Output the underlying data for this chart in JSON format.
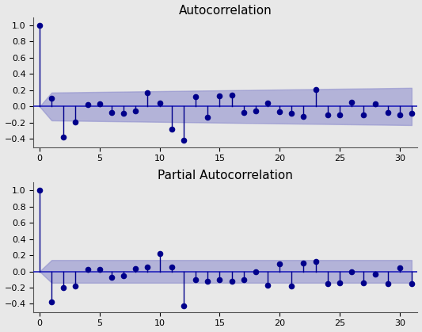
{
  "acf_values": [
    1.0,
    0.1,
    -0.38,
    -0.19,
    0.02,
    0.03,
    -0.07,
    -0.08,
    -0.05,
    0.17,
    0.04,
    -0.28,
    -0.42,
    0.12,
    -0.13,
    0.13,
    0.14,
    -0.07,
    -0.05,
    0.04,
    -0.06,
    -0.08,
    -0.12,
    0.21,
    -0.1,
    -0.1,
    0.05,
    -0.1,
    0.03,
    -0.07,
    -0.1,
    -0.08
  ],
  "pacf_values": [
    1.0,
    -0.38,
    -0.2,
    -0.18,
    0.02,
    0.02,
    -0.07,
    -0.05,
    0.03,
    0.05,
    0.22,
    0.05,
    -0.42,
    -0.1,
    -0.12,
    -0.1,
    -0.12,
    -0.1,
    0.0,
    -0.17,
    0.09,
    -0.18,
    0.1,
    0.12,
    -0.15,
    -0.14,
    0.0,
    -0.14,
    -0.03,
    -0.15,
    0.04,
    -0.15
  ],
  "n_lags": 31,
  "title_acf": "Autocorrelation",
  "title_pacf": "Partial Autocorrelation",
  "ylim": [
    -0.5,
    1.1
  ],
  "xlim": [
    -0.5,
    31.5
  ],
  "line_color": "#00008B",
  "dot_color": "#00008B",
  "conf_band_color": "#8888cc",
  "conf_band_alpha": 0.55,
  "zero_line_color": "#2222bb",
  "title_fontsize": 11,
  "tick_fontsize": 8,
  "fig_facecolor": "#e8e8e8",
  "ax_facecolor": "#e8e8e8",
  "yticks": [
    -0.4,
    -0.2,
    0.0,
    0.2,
    0.4,
    0.6,
    0.8,
    1.0
  ],
  "xticks": [
    0,
    5,
    10,
    15,
    20,
    25,
    30
  ]
}
